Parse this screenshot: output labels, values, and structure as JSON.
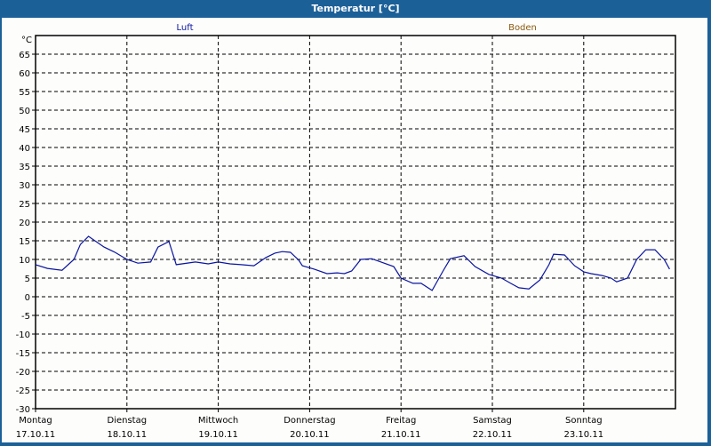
{
  "window": {
    "title": "Temperatur [°C]"
  },
  "legend": [
    {
      "label": "Luft",
      "color": "#0a14a0"
    },
    {
      "label": "Boden",
      "color": "#8a5a10"
    }
  ],
  "colors": {
    "frame": "#1c6098",
    "line": "#0a14a0",
    "background": "#fdfdfb"
  },
  "chart_data": {
    "type": "line",
    "title": "Temperatur [°C]",
    "ylabel": "°C",
    "ylim": [
      -30,
      68
    ],
    "yticks": [
      -30,
      -25,
      -20,
      -15,
      -10,
      -5,
      0,
      5,
      10,
      15,
      20,
      25,
      30,
      35,
      40,
      45,
      50,
      55,
      60,
      65
    ],
    "grid": true,
    "legend_position": "top",
    "x_categories": [
      {
        "day": "Montag",
        "date": "17.10.11"
      },
      {
        "day": "Dienstag",
        "date": "18.10.11"
      },
      {
        "day": "Mittwoch",
        "date": "19.10.11"
      },
      {
        "day": "Donnerstag",
        "date": "20.10.11"
      },
      {
        "day": "Freitag",
        "date": "21.10.11"
      },
      {
        "day": "Samstag",
        "date": "22.10.11"
      },
      {
        "day": "Sonntag",
        "date": "23.10.11"
      }
    ],
    "series": [
      {
        "name": "Luft",
        "color": "#0a14a0",
        "x_days": [
          0,
          0.13,
          0.29,
          0.42,
          0.49,
          0.58,
          0.75,
          0.87,
          1.0,
          1.12,
          1.26,
          1.34,
          1.46,
          1.54,
          1.75,
          1.89,
          2.0,
          2.13,
          2.25,
          2.39,
          2.52,
          2.62,
          2.7,
          2.79,
          2.88,
          2.92,
          3.05,
          3.19,
          3.3,
          3.38,
          3.46,
          3.56,
          3.68,
          3.92,
          4.0,
          4.13,
          4.22,
          4.34,
          4.46,
          4.54,
          4.69,
          4.81,
          4.96,
          5.1,
          5.2,
          5.29,
          5.4,
          5.52,
          5.62,
          5.67,
          5.79,
          5.9,
          6.0,
          6.08,
          6.2,
          6.3,
          6.36,
          6.48,
          6.58,
          6.68,
          6.78,
          6.88,
          6.94
        ],
        "values": [
          8.6,
          7.6,
          7.1,
          10,
          14,
          16.2,
          13.3,
          11.9,
          10,
          9,
          9.3,
          13.3,
          14.8,
          8.6,
          9.3,
          8.8,
          9.3,
          8.8,
          8.6,
          8.3,
          10.5,
          11.7,
          12.1,
          11.9,
          9.8,
          8.3,
          7.4,
          6.2,
          6.4,
          6.2,
          6.9,
          10,
          10.2,
          8.1,
          5,
          3.6,
          3.6,
          1.7,
          6.9,
          10.2,
          11,
          8.1,
          6,
          5,
          3.6,
          2.4,
          2.1,
          4.5,
          8.6,
          11.4,
          11.2,
          8.3,
          6.7,
          6.2,
          5.7,
          5,
          4,
          5,
          10,
          12.6,
          12.6,
          10,
          7.4
        ]
      },
      {
        "name": "Boden",
        "color": "#8a5a10",
        "x_days": [],
        "values": []
      }
    ]
  }
}
